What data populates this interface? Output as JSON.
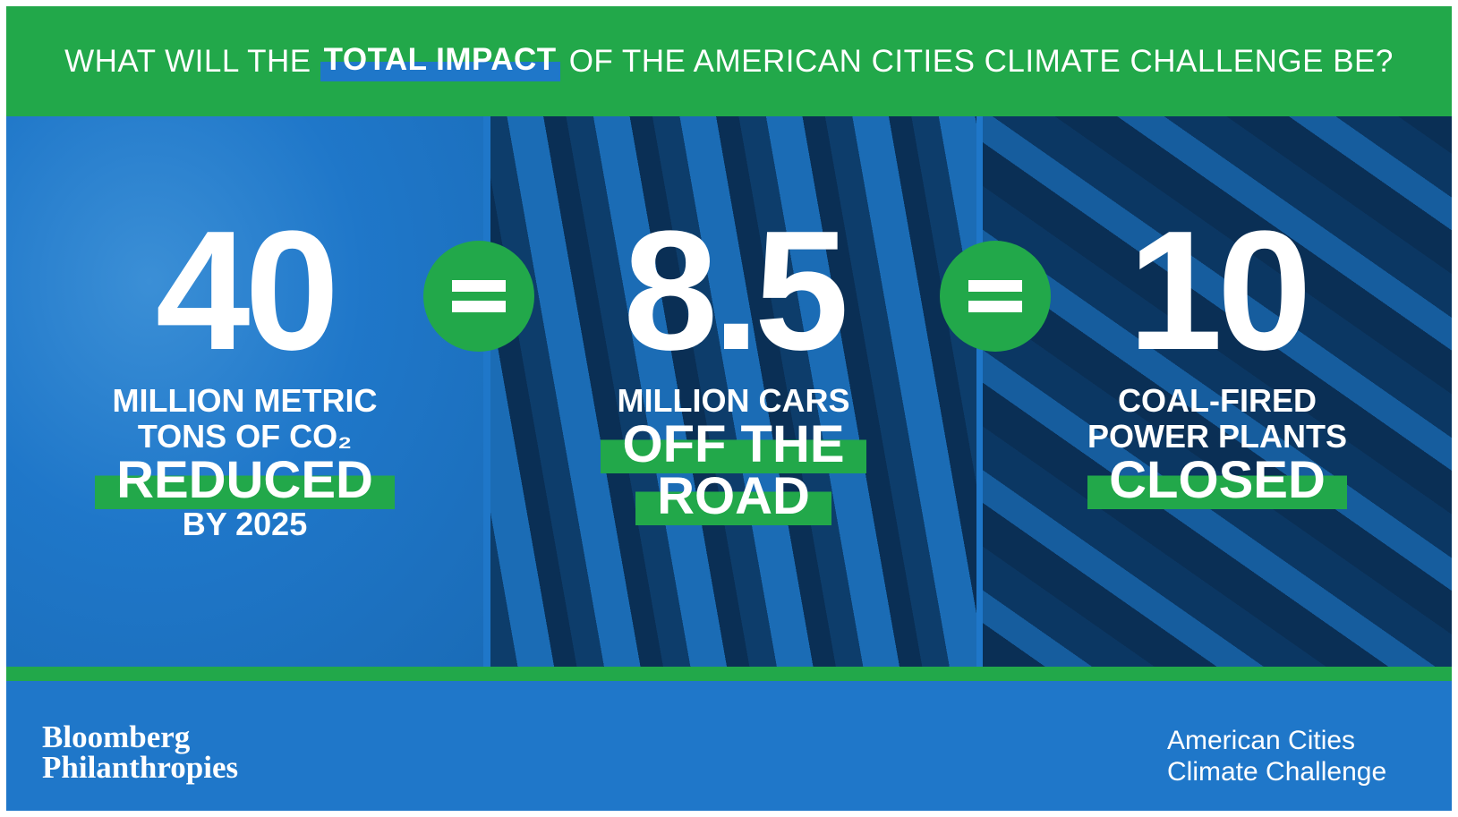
{
  "header": {
    "title_parts": [
      "WHAT WILL THE",
      "TOTAL IMPACT",
      "OF THE AMERICAN CITIES CLIMATE CHALLENGE BE?"
    ]
  },
  "panels": [
    {
      "number": "40",
      "lines": [
        "MILLION METRIC",
        "TONS OF CO₂"
      ],
      "highlight": [
        "REDUCED"
      ],
      "after": [
        "BY 2025"
      ]
    },
    {
      "number": "8.5",
      "lines": [
        "MILLION CARS"
      ],
      "highlight": [
        "OFF THE",
        "ROAD"
      ],
      "after": []
    },
    {
      "number": "10",
      "lines": [
        "COAL-FIRED",
        "POWER PLANTS"
      ],
      "highlight": [
        "CLOSED"
      ],
      "after": []
    }
  ],
  "footer": {
    "left": [
      "Bloomberg",
      "Philanthropies"
    ],
    "right": [
      "American Cities",
      "Climate Challenge"
    ]
  }
}
